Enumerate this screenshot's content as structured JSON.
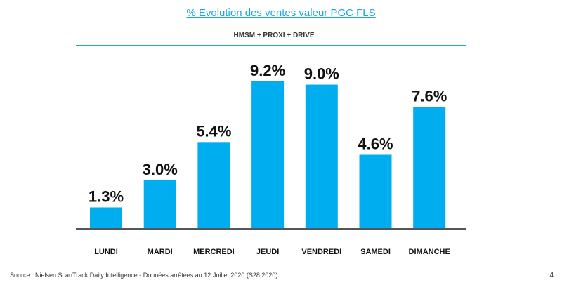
{
  "title": "% Evolution des ventes valeur PGC FLS",
  "subtitle": "HMSM + PROXI + DRIVE",
  "source": "Source : Nielsen ScanTrack Daily Intelligence - Données arrêtées au 12 Juillet 2020 (S28 2020)",
  "page_number": "4",
  "colors": {
    "bar": "#00adef",
    "accent": "#1aa7e6",
    "axis": "#555555"
  },
  "chart_data": {
    "type": "bar",
    "categories": [
      "LUNDI",
      "MARDI",
      "MERCREDI",
      "JEUDI",
      "VENDREDI",
      "SAMEDI",
      "DIMANCHE"
    ],
    "values": [
      1.3,
      3.0,
      5.4,
      9.2,
      9.0,
      4.6,
      7.6
    ],
    "data_labels": [
      "1.3%",
      "3.0%",
      "5.4%",
      "9.2%",
      "9.0%",
      "4.6%",
      "7.6%"
    ],
    "title": "% Evolution des ventes valeur PGC FLS",
    "xlabel": "",
    "ylabel": "",
    "ylim": [
      0,
      9.2
    ],
    "grid": false,
    "legend": "none"
  }
}
